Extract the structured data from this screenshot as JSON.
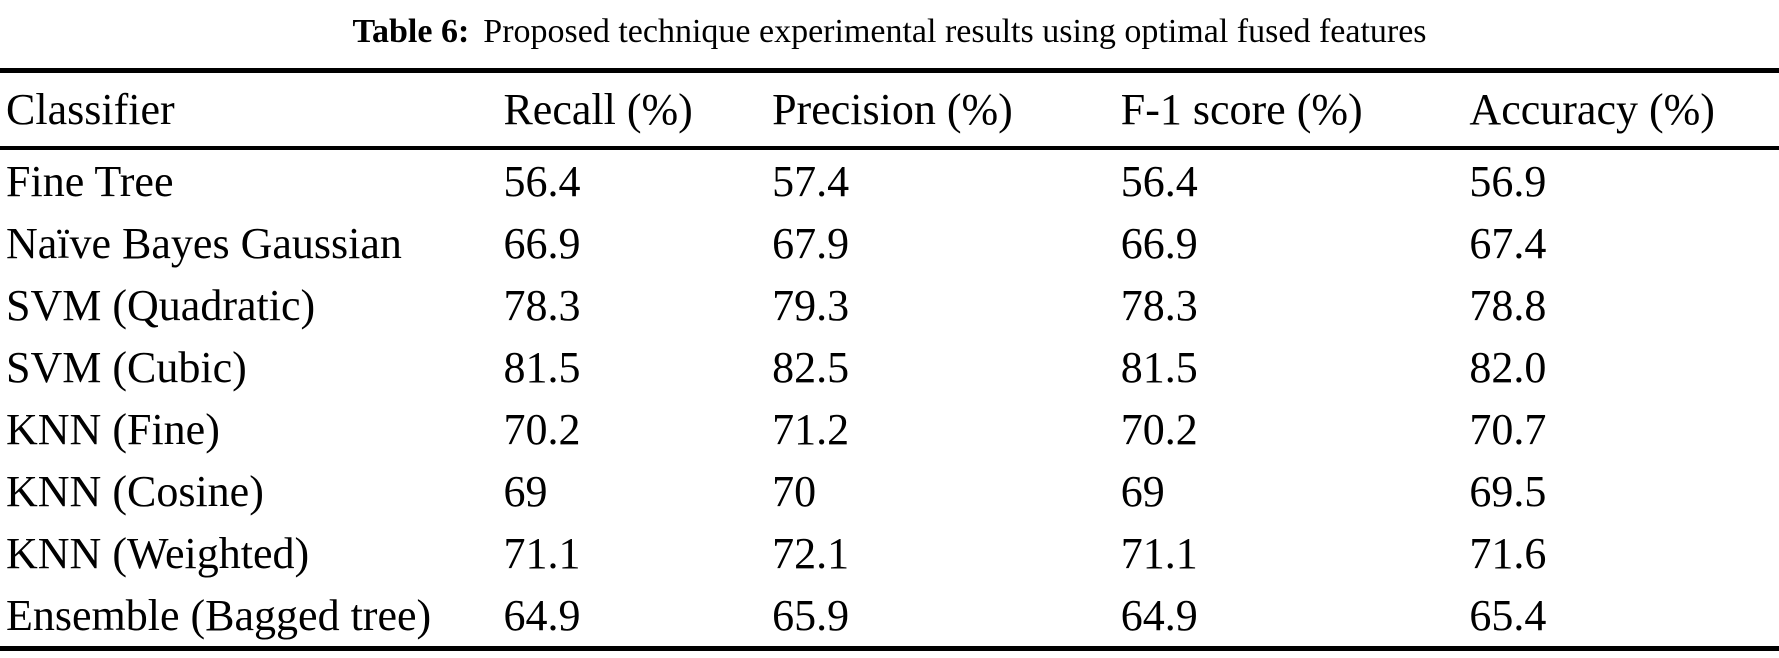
{
  "caption": {
    "label": "Table 6:",
    "text": "Proposed technique experimental results using optimal fused features"
  },
  "chart_data": {
    "type": "table",
    "columns": [
      "Classifier",
      "Recall (%)",
      "Precision (%)",
      "F-1 score (%)",
      "Accuracy (%)"
    ],
    "rows": [
      [
        "Fine Tree",
        "56.4",
        "57.4",
        "56.4",
        "56.9"
      ],
      [
        "Naïve Bayes Gaussian",
        "66.9",
        "67.9",
        "66.9",
        "67.4"
      ],
      [
        "SVM (Quadratic)",
        "78.3",
        "79.3",
        "78.3",
        "78.8"
      ],
      [
        "SVM (Cubic)",
        "81.5",
        "82.5",
        "81.5",
        "82.0"
      ],
      [
        "KNN (Fine)",
        "70.2",
        "71.2",
        "70.2",
        "70.7"
      ],
      [
        "KNN (Cosine)",
        "69",
        "70",
        "69",
        "69.5"
      ],
      [
        "KNN (Weighted)",
        "71.1",
        "72.1",
        "71.1",
        "71.6"
      ],
      [
        "Ensemble (Bagged tree)",
        "64.9",
        "65.9",
        "64.9",
        "65.4"
      ]
    ]
  },
  "colors": {
    "text": "#000000",
    "background": "#ffffff",
    "rule": "#000000"
  }
}
